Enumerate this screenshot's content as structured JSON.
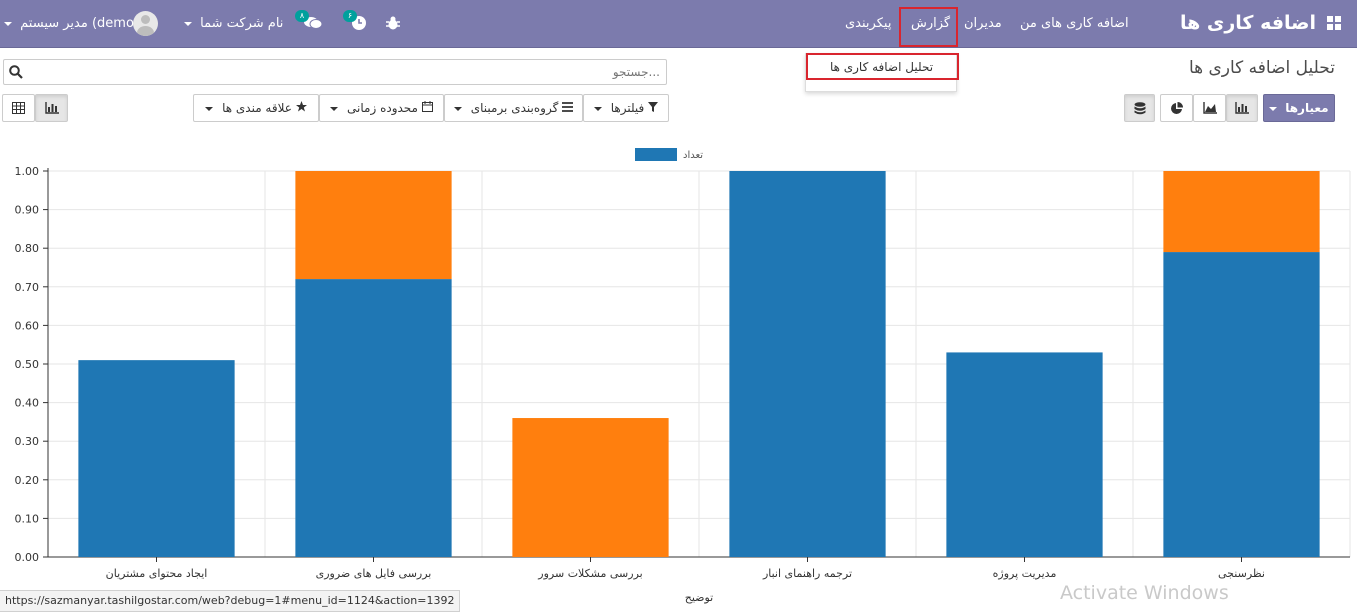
{
  "navbar": {
    "app_name": "اضافه کاری ها",
    "menus": [
      "اضافه کاری های من",
      "مدیران",
      "گزارش",
      "پیکربندی"
    ],
    "user": "مدیر سیستم (demo)",
    "company": "نام شرکت شما",
    "activity_count": "۶",
    "message_count": "۸",
    "icons": {
      "apps": "apps-grid-icon",
      "bug": "bug-icon",
      "clock": "clock-icon",
      "chat": "chat-icon"
    }
  },
  "dropdown": {
    "item": "تحلیل اضافه کاری ها"
  },
  "page": {
    "title": "تحلیل اضافه کاری ها",
    "search_placeholder": "جستجو...",
    "measures_label": "معیارها",
    "filters_label": "فیلترها",
    "groupby_label": "گروه‌بندی برمبنای",
    "timerange_label": "محدوده زمانی",
    "favorites_label": "علاقه مندی ها"
  },
  "status_url": "https://sazmanyar.tashilgostar.com/web?debug=1#menu_id=1124&action=1392",
  "watermark": "Activate Windows",
  "colors": {
    "navbar": "#7c7bad",
    "highlight": "#d9252e",
    "blue": "#1f77b4",
    "orange": "#ff7f0e"
  },
  "chart_data": {
    "type": "bar",
    "stacked": true,
    "xlabel": "توضیح",
    "ylabel": "",
    "ylim": [
      0,
      1
    ],
    "yticks": [
      "1.00",
      "0.90",
      "0.80",
      "0.70",
      "0.60",
      "0.50",
      "0.40",
      "0.30",
      "0.20",
      "0.10",
      "0.00"
    ],
    "categories": [
      "ایجاد محتوای مشتریان",
      "بررسی فایل های ضروری",
      "بررسی مشکلات سرور",
      "ترجمه راهنمای انبار",
      "مدیریت پروژه",
      "نظرسنجی"
    ],
    "legend_position": "top-center",
    "series": [
      {
        "name": "تعداد",
        "color": "#1f77b4",
        "values": [
          0.51,
          0.72,
          0,
          1.0,
          0.53,
          0.79
        ]
      },
      {
        "color": "#ff7f0e",
        "values": [
          0,
          0.28,
          0.36,
          0,
          0,
          0.21
        ]
      }
    ]
  }
}
